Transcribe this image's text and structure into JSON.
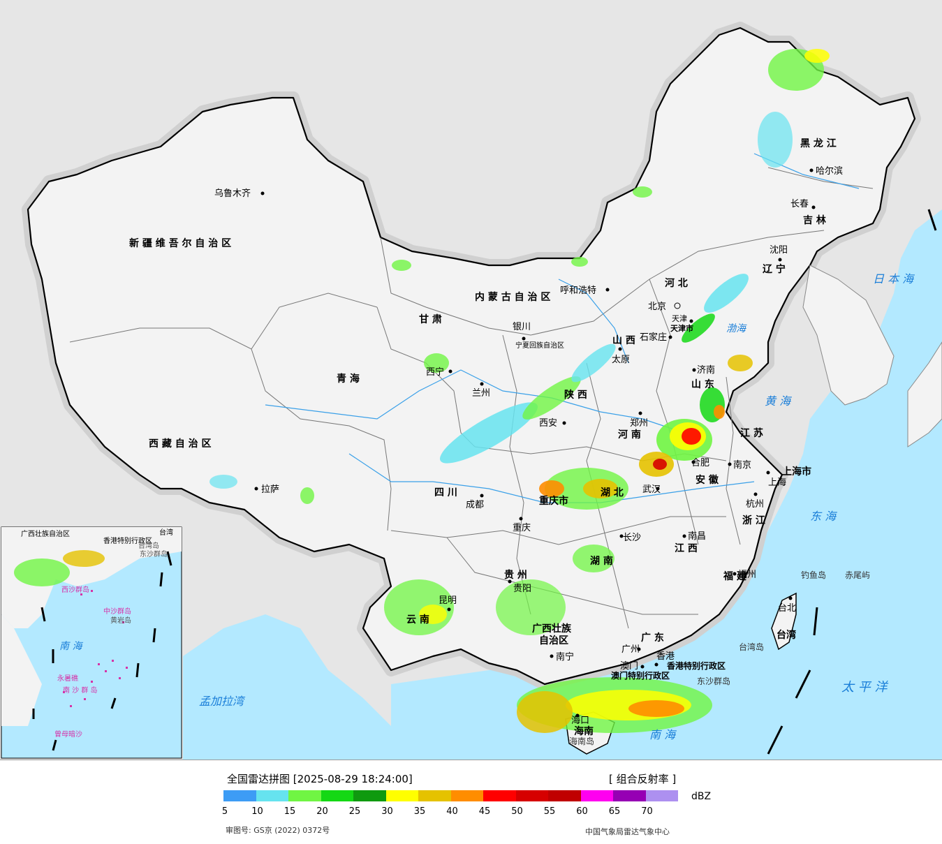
{
  "map": {
    "prov_labels": [
      {
        "id": "xinjiang",
        "text": "新 疆 维 吾 尔 自 治 区"
      },
      {
        "id": "xizang",
        "text": "西 藏 自 治 区"
      },
      {
        "id": "qinghai",
        "text": "青    海"
      },
      {
        "id": "sichuan",
        "text": "四   川"
      },
      {
        "id": "yunnan",
        "text": "云   南"
      },
      {
        "id": "guizhou",
        "text": "贵   州"
      },
      {
        "id": "guangxi",
        "text": "广西壮族"
      },
      {
        "id": "guangxi2",
        "text": "自治区"
      },
      {
        "id": "guangdong",
        "text": "广   东"
      },
      {
        "id": "hunan",
        "text": "湖   南"
      },
      {
        "id": "hubei",
        "text": "湖   北"
      },
      {
        "id": "henan",
        "text": "河   南"
      },
      {
        "id": "jiangxi",
        "text": "江  西"
      },
      {
        "id": "fujian",
        "text": "福  建"
      },
      {
        "id": "zhejiang",
        "text": "浙 江"
      },
      {
        "id": "jiangsu",
        "text": "江  苏"
      },
      {
        "id": "anhui",
        "text": "安  徽"
      },
      {
        "id": "shandong",
        "text": "山 东"
      },
      {
        "id": "shanxi",
        "text": "山  西"
      },
      {
        "id": "shaanxi",
        "text": "陕   西"
      },
      {
        "id": "gansu",
        "text": "甘   肃"
      },
      {
        "id": "ningxia",
        "text": "宁夏回族自治区"
      },
      {
        "id": "neimenggu",
        "text": "内 蒙 古 自 治 区"
      },
      {
        "id": "hebei",
        "text": "河  北"
      },
      {
        "id": "liaoning",
        "text": "辽  宁"
      },
      {
        "id": "jilin",
        "text": "吉  林"
      },
      {
        "id": "heilongjiang",
        "text": "黑  龙  江"
      },
      {
        "id": "chongqing",
        "text": "重庆市"
      },
      {
        "id": "taiwan",
        "text": "台湾"
      },
      {
        "id": "hainan",
        "text": "海南"
      },
      {
        "id": "shanghai",
        "text": "上海市"
      },
      {
        "id": "tianjin",
        "text": "天津市"
      },
      {
        "id": "xianggang",
        "text": "香港特别行政区"
      },
      {
        "id": "aomen",
        "text": "澳门特别行政区"
      }
    ],
    "cities": [
      {
        "id": "urumqi",
        "text": "乌鲁木齐"
      },
      {
        "id": "lhasa",
        "text": "拉萨"
      },
      {
        "id": "xining",
        "text": "西宁"
      },
      {
        "id": "lanzhou",
        "text": "兰州"
      },
      {
        "id": "yinchuan",
        "text": "银川"
      },
      {
        "id": "huhehaote",
        "text": "呼和浩特"
      },
      {
        "id": "beijing",
        "text": "北京"
      },
      {
        "id": "tianjin",
        "text": "天津"
      },
      {
        "id": "shijiazhuang",
        "text": "石家庄"
      },
      {
        "id": "taiyuan",
        "text": "太原"
      },
      {
        "id": "jinan",
        "text": "济南"
      },
      {
        "id": "zhengzhou",
        "text": "郑州"
      },
      {
        "id": "xian",
        "text": "西安"
      },
      {
        "id": "chengdu",
        "text": "成都"
      },
      {
        "id": "chongqing",
        "text": "重庆"
      },
      {
        "id": "guiyang",
        "text": "贵阳"
      },
      {
        "id": "kunming",
        "text": "昆明"
      },
      {
        "id": "nanning",
        "text": "南宁"
      },
      {
        "id": "guangzhou",
        "text": "广州"
      },
      {
        "id": "changsha",
        "text": "长沙"
      },
      {
        "id": "wuhan",
        "text": "武汉"
      },
      {
        "id": "hefei",
        "text": "合肥"
      },
      {
        "id": "nanjing",
        "text": "南京"
      },
      {
        "id": "shanghai",
        "text": "上海"
      },
      {
        "id": "hangzhou",
        "text": "杭州"
      },
      {
        "id": "nanchang",
        "text": "南昌"
      },
      {
        "id": "fuzhou",
        "text": "福州"
      },
      {
        "id": "taibei",
        "text": "台北"
      },
      {
        "id": "haikou",
        "text": "海口"
      },
      {
        "id": "shenyang",
        "text": "沈阳"
      },
      {
        "id": "changchun",
        "text": "长春"
      },
      {
        "id": "haerbin",
        "text": "哈尔滨"
      },
      {
        "id": "aomen",
        "text": "澳门"
      },
      {
        "id": "xianggang",
        "text": "香港"
      }
    ],
    "seas": [
      {
        "id": "huanghai",
        "text": "黄   海"
      },
      {
        "id": "donghai",
        "text": "东   海"
      },
      {
        "id": "taipingyang",
        "text": "太   平   洋"
      },
      {
        "id": "ribenhai",
        "text": "日 本 海"
      },
      {
        "id": "nanhai",
        "text": "南   海"
      },
      {
        "id": "mengjialawan",
        "text": "孟加拉湾"
      },
      {
        "id": "bohai",
        "text": "渤海"
      }
    ],
    "islands": [
      {
        "id": "diaoyudao",
        "text": "钓鱼岛"
      },
      {
        "id": "chiweiyu",
        "text": "赤尾屿"
      },
      {
        "id": "taiwandao",
        "text": "台湾岛"
      },
      {
        "id": "dongshaqundao",
        "text": "东沙群岛"
      },
      {
        "id": "hainandao",
        "text": "海南岛"
      }
    ],
    "inset": {
      "nanhai": "南   海",
      "xisha": "西沙群岛",
      "zhongsha": "中沙群岛",
      "nansha": "南 沙 群 岛",
      "huangyan": "黄岩岛",
      "zengmu": "曾母暗沙",
      "yongshu": "永暑礁",
      "taiwan": "台湾",
      "guangxi": "广西壮族自治区",
      "xianggang": "香港特别行政区",
      "taiwandao": "台湾岛",
      "dongsha": "东沙群岛"
    },
    "colors": {
      "land": "#f3f3f3",
      "sea": "#b3e9ff",
      "outside": "#e6e6e6",
      "border": "#000000"
    }
  },
  "legend": {
    "title": "全国雷达拼图 [2025-08-29 18:24:00]",
    "type": "[ 组合反射率 ]",
    "unit": "dBZ",
    "colors": [
      "#3d9cf5",
      "#66e3ef",
      "#70f543",
      "#14d814",
      "#0f9a0f",
      "#ffff00",
      "#e5c200",
      "#ff8d00",
      "#ff0000",
      "#d60000",
      "#c00000",
      "#ff00f0",
      "#9600b4",
      "#ad90f0"
    ],
    "ticks": [
      "5",
      "10",
      "15",
      "20",
      "25",
      "30",
      "35",
      "40",
      "45",
      "50",
      "55",
      "60",
      "65",
      "70"
    ],
    "approval": "审图号: GS京 (2022) 0372号",
    "source": "中国气象局雷达气象中心"
  }
}
